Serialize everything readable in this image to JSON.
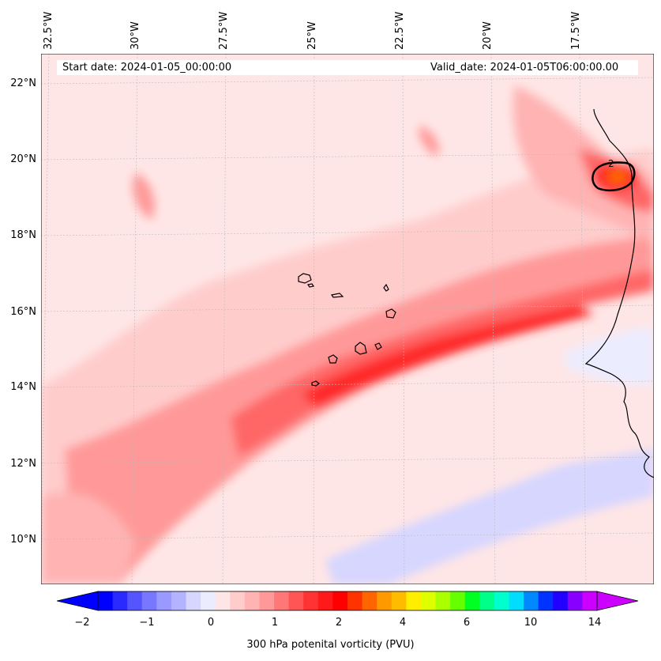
{
  "header": {
    "start_date": "Start date: 2024-01-05_00:00:00",
    "valid_date": "Valid_date: 2024-01-05T06:00:00.00"
  },
  "map": {
    "lon_labels": [
      "32.5°W",
      "30°W",
      "27.5°W",
      "25°W",
      "22.5°W",
      "20°W",
      "17.5°W"
    ],
    "lat_labels": [
      "22°N",
      "20°N",
      "18°N",
      "16°N",
      "14°N",
      "12°N",
      "10°N"
    ],
    "contour_label": "2"
  },
  "colorbar": {
    "ticks": [
      "−2",
      "−1",
      "0",
      "1",
      "2",
      "4",
      "6",
      "10",
      "14"
    ],
    "label": "300 hPa potenital vorticity (PVU)",
    "colors": [
      "#0000ff",
      "#2a2aff",
      "#5555ff",
      "#7777ff",
      "#9999ff",
      "#b3b3ff",
      "#d6d6ff",
      "#ececff",
      "#ffe5e5",
      "#ffcccc",
      "#ffb3b3",
      "#ff9999",
      "#ff7777",
      "#ff5555",
      "#ff3333",
      "#ff1a1a",
      "#ff0000",
      "#ff3300",
      "#ff6600",
      "#ff9900",
      "#ffbb00",
      "#ffee00",
      "#ddff00",
      "#aaff00",
      "#66ff00",
      "#00ff22",
      "#00ff88",
      "#00ffcc",
      "#00ddff",
      "#0088ff",
      "#0033ff",
      "#2200ff",
      "#8800ff",
      "#cc00ff"
    ],
    "low_arrow_color": "#0000ff",
    "high_arrow_color": "#cc00ff"
  }
}
